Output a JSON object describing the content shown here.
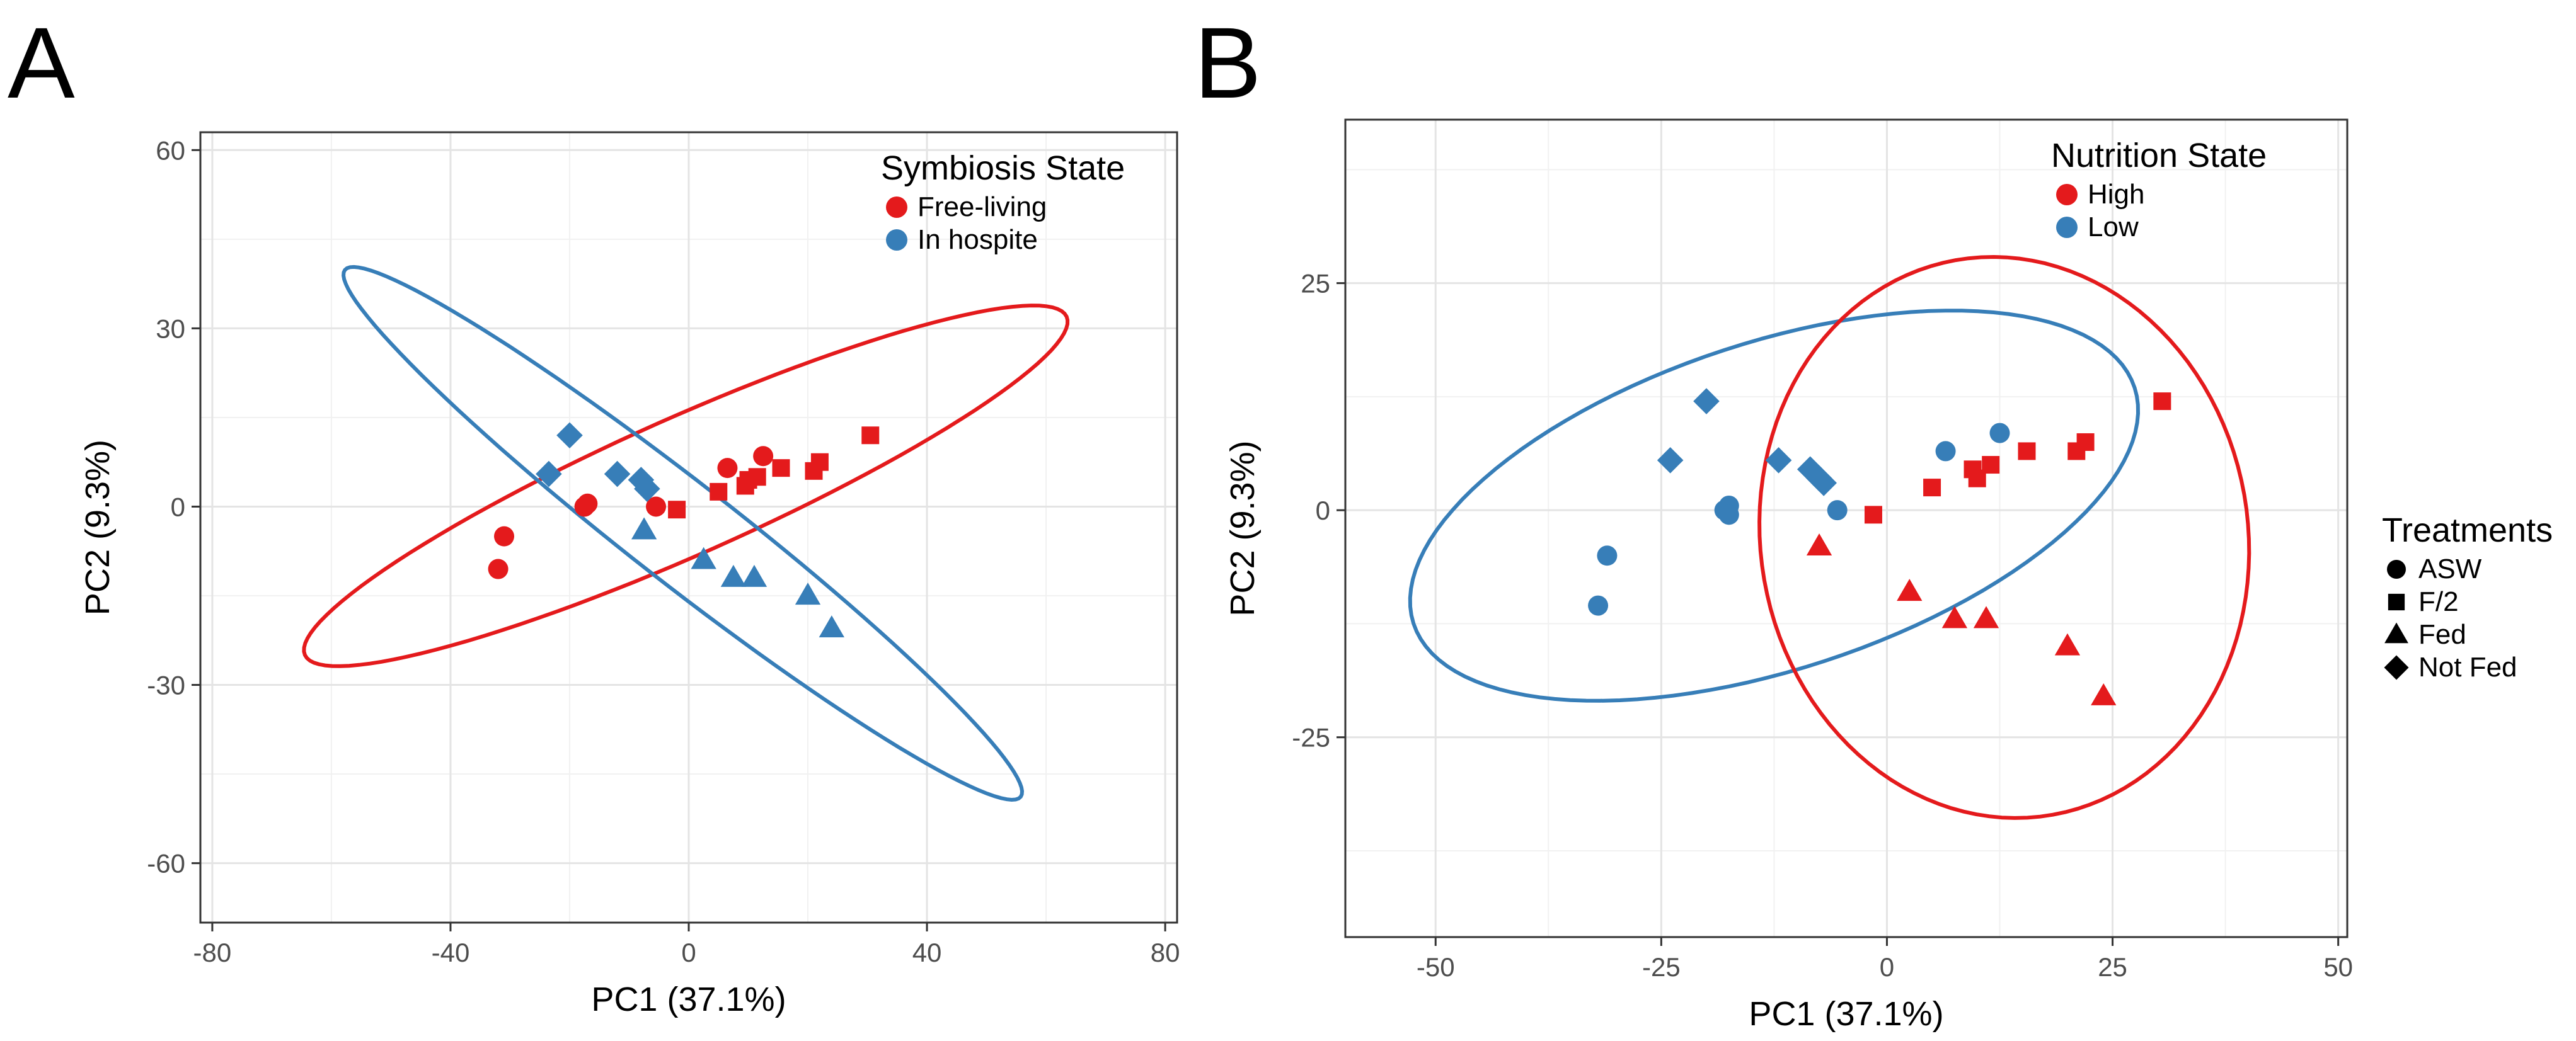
{
  "colors": {
    "red": "#e41a1c",
    "blue": "#377eb8"
  },
  "chart_data": [
    {
      "panel": "A",
      "type": "scatter",
      "xlabel": "PC1 (37.1%)",
      "ylabel": "PC2 (9.3%)",
      "xlim": [
        -82,
        82
      ],
      "ylim": [
        -70,
        63
      ],
      "xticks": [
        -80,
        -40,
        0,
        40,
        80
      ],
      "yticks": [
        -60,
        -30,
        0,
        30,
        60
      ],
      "grid": true,
      "legend": {
        "title": "Symbiosis State",
        "placement": "top-right",
        "entries": [
          {
            "label": "Free-living",
            "color": "#e41a1c",
            "shape": "circle"
          },
          {
            "label": "In hospite",
            "color": "#377eb8",
            "shape": "circle"
          }
        ]
      },
      "ellipses": [
        {
          "group": "Free-living",
          "color": "#e41a1c",
          "center": [
            -0.5,
            3.5
          ],
          "semi_major": 70,
          "semi_minor": 11.5,
          "angle_deg": 24
        },
        {
          "group": "In hospite",
          "color": "#377eb8",
          "center": [
            -1,
            -4.5
          ],
          "semi_major": 72,
          "semi_minor": 8.5,
          "angle_deg": -38
        }
      ],
      "series": [
        {
          "name": "Free-living",
          "color": "#e41a1c",
          "points": [
            {
              "x": -32,
              "y": -10.5,
              "shape": "circle"
            },
            {
              "x": -31,
              "y": -5,
              "shape": "circle"
            },
            {
              "x": -17.5,
              "y": 0,
              "shape": "circle"
            },
            {
              "x": -17,
              "y": 0.5,
              "shape": "circle"
            },
            {
              "x": -5.5,
              "y": 0,
              "shape": "circle"
            },
            {
              "x": 6.5,
              "y": 6.5,
              "shape": "circle"
            },
            {
              "x": 12.5,
              "y": 8.5,
              "shape": "circle"
            },
            {
              "x": -2,
              "y": -0.5,
              "shape": "square"
            },
            {
              "x": 5,
              "y": 2.5,
              "shape": "square"
            },
            {
              "x": 9.5,
              "y": 3.5,
              "shape": "square"
            },
            {
              "x": 10,
              "y": 4.5,
              "shape": "square"
            },
            {
              "x": 11.5,
              "y": 5,
              "shape": "square"
            },
            {
              "x": 15.5,
              "y": 6.5,
              "shape": "square"
            },
            {
              "x": 21,
              "y": 6,
              "shape": "square"
            },
            {
              "x": 22,
              "y": 7.5,
              "shape": "square"
            },
            {
              "x": 30.5,
              "y": 12,
              "shape": "square"
            }
          ]
        },
        {
          "name": "In hospite",
          "color": "#377eb8",
          "points": [
            {
              "x": -20,
              "y": 12,
              "shape": "diamond"
            },
            {
              "x": -23.5,
              "y": 5.5,
              "shape": "diamond"
            },
            {
              "x": -12,
              "y": 5.5,
              "shape": "diamond"
            },
            {
              "x": -8,
              "y": 4.5,
              "shape": "diamond"
            },
            {
              "x": -7,
              "y": 3,
              "shape": "diamond"
            },
            {
              "x": -7.5,
              "y": -4,
              "shape": "triangle"
            },
            {
              "x": 2.5,
              "y": -9,
              "shape": "triangle"
            },
            {
              "x": 7.5,
              "y": -12,
              "shape": "triangle"
            },
            {
              "x": 11,
              "y": -12,
              "shape": "triangle"
            },
            {
              "x": 20,
              "y": -15,
              "shape": "triangle"
            },
            {
              "x": 24,
              "y": -20.5,
              "shape": "triangle"
            }
          ]
        }
      ]
    },
    {
      "panel": "B",
      "type": "scatter",
      "xlabel": "PC1 (37.1%)",
      "ylabel": "PC2 (9.3%)",
      "xlim": [
        -60,
        51
      ],
      "ylim": [
        -47,
        43
      ],
      "xticks": [
        -50,
        -25,
        0,
        25,
        50
      ],
      "yticks": [
        -25,
        0,
        25
      ],
      "grid": true,
      "legend": {
        "title": "Nutrition State",
        "placement": "top-right",
        "entries": [
          {
            "label": "High",
            "color": "#e41a1c",
            "shape": "circle"
          },
          {
            "label": "Low",
            "color": "#377eb8",
            "shape": "circle"
          }
        ]
      },
      "ellipses": [
        {
          "group": "Low",
          "color": "#377eb8",
          "center": [
            -12.5,
            0.5
          ],
          "semi_major": 42,
          "semi_minor": 18,
          "angle_deg": 18
        },
        {
          "group": "High",
          "color": "#e41a1c",
          "center": [
            13,
            -3
          ],
          "semi_major": 31,
          "semi_minor": 27,
          "angle_deg": -80
        }
      ],
      "series": [
        {
          "name": "High",
          "color": "#e41a1c",
          "points": [
            {
              "x": -1.5,
              "y": -0.5,
              "shape": "square"
            },
            {
              "x": 5,
              "y": 2.5,
              "shape": "square"
            },
            {
              "x": 9.5,
              "y": 4.5,
              "shape": "square"
            },
            {
              "x": 10,
              "y": 3.5,
              "shape": "square"
            },
            {
              "x": 11.5,
              "y": 5,
              "shape": "square"
            },
            {
              "x": 15.5,
              "y": 6.5,
              "shape": "square"
            },
            {
              "x": 21,
              "y": 6.5,
              "shape": "square"
            },
            {
              "x": 22,
              "y": 7.5,
              "shape": "square"
            },
            {
              "x": 30.5,
              "y": 12,
              "shape": "square"
            },
            {
              "x": -7.5,
              "y": -4,
              "shape": "triangle"
            },
            {
              "x": 2.5,
              "y": -9,
              "shape": "triangle"
            },
            {
              "x": 7.5,
              "y": -12,
              "shape": "triangle"
            },
            {
              "x": 11,
              "y": -12,
              "shape": "triangle"
            },
            {
              "x": 20,
              "y": -15,
              "shape": "triangle"
            },
            {
              "x": 24,
              "y": -20.5,
              "shape": "triangle"
            }
          ]
        },
        {
          "name": "Low",
          "color": "#377eb8",
          "points": [
            {
              "x": -32,
              "y": -10.5,
              "shape": "circle"
            },
            {
              "x": -31,
              "y": -5,
              "shape": "circle"
            },
            {
              "x": -18,
              "y": 0,
              "shape": "circle"
            },
            {
              "x": -17.5,
              "y": 0.5,
              "shape": "circle"
            },
            {
              "x": -17.5,
              "y": -0.5,
              "shape": "circle"
            },
            {
              "x": -5.5,
              "y": 0,
              "shape": "circle"
            },
            {
              "x": 6.5,
              "y": 6.5,
              "shape": "circle"
            },
            {
              "x": 12.5,
              "y": 8.5,
              "shape": "circle"
            },
            {
              "x": -20,
              "y": 12,
              "shape": "diamond"
            },
            {
              "x": -24,
              "y": 5.5,
              "shape": "diamond"
            },
            {
              "x": -12,
              "y": 5.5,
              "shape": "diamond"
            },
            {
              "x": -8.5,
              "y": 4.5,
              "shape": "diamond"
            },
            {
              "x": -7.5,
              "y": 3.5,
              "shape": "diamond"
            },
            {
              "x": -7,
              "y": 3,
              "shape": "diamond"
            }
          ]
        }
      ]
    }
  ],
  "shared_legend": {
    "title": "Treatments",
    "entries": [
      {
        "label": "ASW",
        "shape": "circle"
      },
      {
        "label": "F/2",
        "shape": "square"
      },
      {
        "label": "Fed",
        "shape": "triangle"
      },
      {
        "label": "Not Fed",
        "shape": "diamond"
      }
    ]
  },
  "panel_labels": [
    "A",
    "B"
  ]
}
